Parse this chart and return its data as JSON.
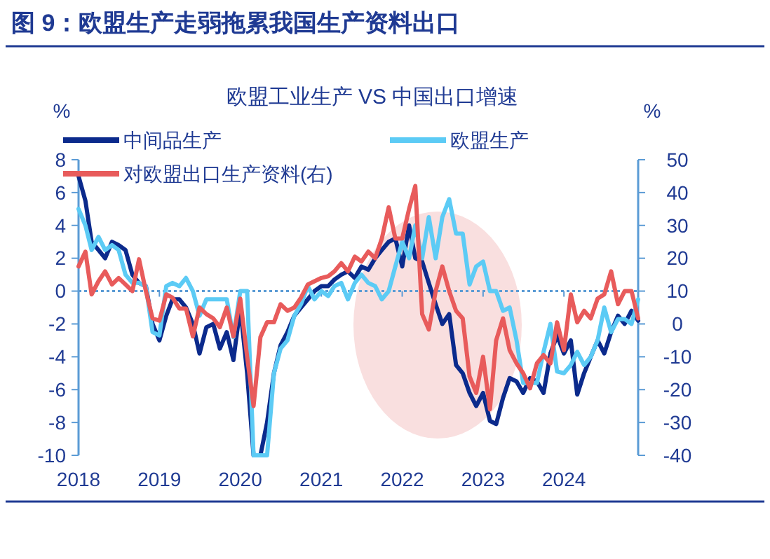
{
  "chart_data": {
    "type": "line",
    "title": "图 9：欧盟生产走弱拖累我国生产资料出口",
    "subtitle": "欧盟工业生产 VS 中国出口增速",
    "ylabel": "%",
    "y2label": "%",
    "x": [
      "2018-01",
      "2018-02",
      "2018-03",
      "2018-04",
      "2018-05",
      "2018-06",
      "2018-07",
      "2018-08",
      "2018-09",
      "2018-10",
      "2018-11",
      "2018-12",
      "2019-01",
      "2019-02",
      "2019-03",
      "2019-04",
      "2019-05",
      "2019-06",
      "2019-07",
      "2019-08",
      "2019-09",
      "2019-10",
      "2019-11",
      "2019-12",
      "2020-01",
      "2020-02",
      "2020-03",
      "2020-04",
      "2020-05",
      "2020-06",
      "2020-07",
      "2020-08",
      "2020-09",
      "2020-10",
      "2020-11",
      "2020-12",
      "2021-01",
      "2021-02",
      "2021-03",
      "2021-04",
      "2021-05",
      "2021-06",
      "2021-07",
      "2021-08",
      "2021-09",
      "2021-10",
      "2021-11",
      "2021-12",
      "2022-01",
      "2022-02",
      "2022-03",
      "2022-04",
      "2022-05",
      "2022-06",
      "2022-07",
      "2022-08",
      "2022-09",
      "2022-10",
      "2022-11",
      "2022-12",
      "2023-01",
      "2023-02",
      "2023-03",
      "2023-04",
      "2023-05",
      "2023-06",
      "2023-07",
      "2023-08",
      "2023-09",
      "2023-10",
      "2023-11",
      "2023-12",
      "2024-01",
      "2024-02",
      "2024-03",
      "2024-04",
      "2024-05",
      "2024-06",
      "2024-07",
      "2024-08",
      "2024-09",
      "2024-10",
      "2024-11",
      "2024-12"
    ],
    "series": [
      {
        "name": "中间品生产",
        "color": "#0b2a8c",
        "values": [
          7,
          5.5,
          3,
          2.5,
          2,
          3,
          2.8,
          2.5,
          1,
          0.5,
          0.3,
          -2,
          -3,
          -1.5,
          -0.5,
          -0.5,
          -1,
          -2,
          -3.8,
          -2.2,
          -2,
          -3.5,
          -2.5,
          -4.2,
          -1,
          -5,
          -10,
          -10,
          -8,
          -5,
          -3.3,
          -2.5,
          -1.5,
          -1,
          -0.5,
          0,
          0.3,
          0.3,
          0.7,
          1,
          1.2,
          0.8,
          1.5,
          1.3,
          2,
          2.5,
          3,
          3.2,
          1.5,
          4,
          2,
          1.8,
          0.5,
          -0.8,
          -2,
          -1.4,
          -4.5,
          -5,
          -6.2,
          -7,
          -6.2,
          -7.9,
          -8.1,
          -6.5,
          -5.3,
          -5.5,
          -6.2,
          -5.3,
          -5.5,
          -6.2,
          -3.8,
          -2.7,
          -3.8,
          -3,
          -6.3,
          -5,
          -4,
          -3,
          -3.8,
          -2.5,
          -1.5,
          -2,
          -1.2,
          -1.8
        ]
      },
      {
        "name": "欧盟生产",
        "color": "#5ccbf5",
        "values": [
          5,
          4,
          2.5,
          3.3,
          2.5,
          2.8,
          2.5,
          1,
          0.5,
          0.5,
          0.3,
          -2.5,
          -2.7,
          0.3,
          0.5,
          0.3,
          0.8,
          0,
          -1.5,
          -0.5,
          -0.5,
          -0.5,
          -0.5,
          -2.8,
          0,
          0,
          -10,
          -10,
          -10,
          -5,
          -3.5,
          -3,
          -1.5,
          -0.8,
          0.3,
          -0.5,
          0,
          -0.3,
          0.3,
          0.5,
          -0.5,
          0.5,
          1,
          0.5,
          0.3,
          -0.5,
          0,
          1.5,
          3,
          2,
          4,
          2,
          4.5,
          2,
          4.5,
          5.6,
          3.5,
          3.5,
          0.4,
          1.5,
          1.8,
          0,
          0,
          -1.2,
          -1,
          -3,
          -5.6,
          -5.6,
          -5.6,
          -3.7,
          -2,
          -4.9,
          -5,
          -4.5,
          -3.7,
          -4.5,
          -4,
          -3,
          -1,
          -2.5,
          -1.7,
          -1.7,
          -2,
          -0.5
        ]
      },
      {
        "name": "对欧盟出口生产资料(右)",
        "color": "#e85b5b",
        "axis": "y2",
        "values": [
          17.5,
          22,
          9,
          13,
          16,
          12,
          14,
          12,
          10,
          19.7,
          10,
          1.7,
          1,
          9,
          8,
          4.7,
          4.7,
          -3.8,
          5,
          3,
          1.7,
          -1,
          5,
          -3.8,
          7.7,
          -10,
          -25,
          -4,
          0.5,
          0.5,
          6,
          4,
          5,
          8,
          12,
          13,
          14,
          14.5,
          16,
          18.5,
          16,
          20.5,
          19,
          22,
          20,
          26,
          35.5,
          26,
          26,
          35,
          42,
          3,
          -1.7,
          10,
          17.5,
          10,
          4,
          1.7,
          -16,
          -21,
          -10,
          -26,
          -5,
          1.7,
          -8,
          -12,
          -15,
          -19.6,
          -12,
          -9.5,
          -12,
          0.5,
          -8,
          9,
          0.5,
          4,
          1.7,
          7.7,
          9,
          16,
          6,
          10,
          10,
          1.7
        ]
      }
    ],
    "xlim": [
      "2018-01",
      "2024-12"
    ],
    "xticks": [
      "2018",
      "2019",
      "2020",
      "2021",
      "2022",
      "2023",
      "2024"
    ],
    "ylim": [
      -10,
      8
    ],
    "yticks": [
      -10,
      -8,
      -6,
      -4,
      -2,
      0,
      2,
      4,
      6,
      8
    ],
    "y2lim": [
      -40,
      50
    ],
    "y2ticks": [
      -40,
      -30,
      -20,
      -10,
      0,
      10,
      20,
      30,
      40,
      50
    ],
    "ref_lines": [
      {
        "axis": "y",
        "value": 0,
        "color": "#5b9bd5",
        "line_style": "dotted"
      }
    ],
    "grid": false,
    "legend": "top",
    "line_style": "solid"
  }
}
